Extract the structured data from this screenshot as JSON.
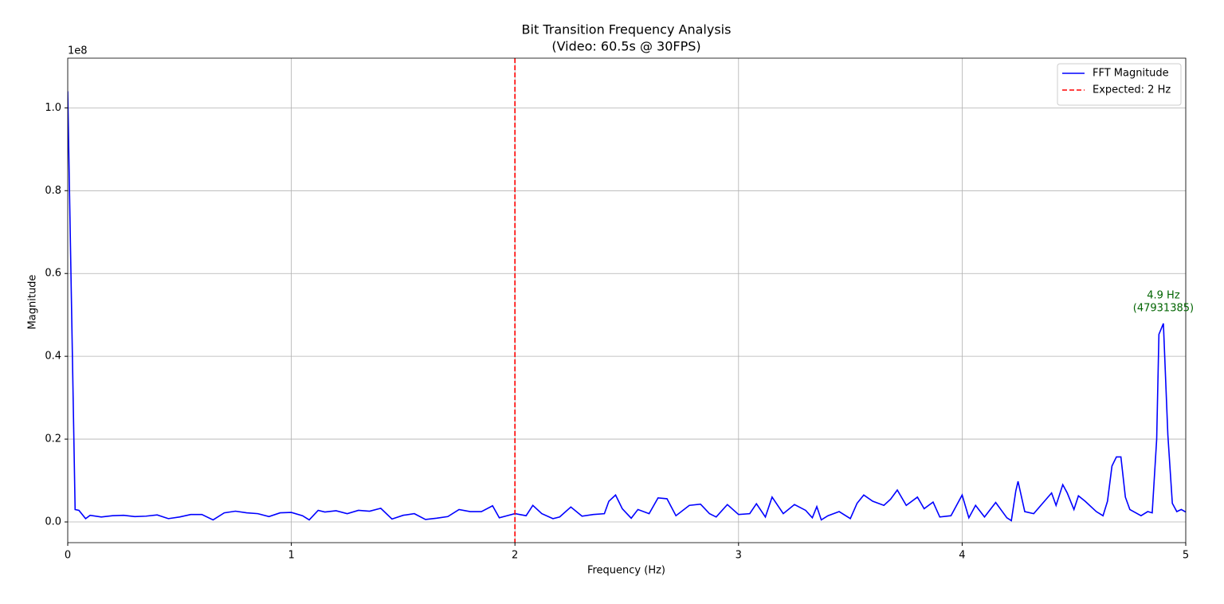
{
  "chart_data": {
    "type": "line",
    "title": "Bit Transition Frequency Analysis",
    "subtitle": "(Video: 60.5s @ 30FPS)",
    "x_label": "Frequency (Hz)",
    "y_label": "Magnitude",
    "y_offset_label": "1e8",
    "xlim": [
      0,
      5
    ],
    "ylim": [
      -5000000,
      112000000
    ],
    "xticks": [
      0,
      1,
      2,
      3,
      4,
      5
    ],
    "yticks": [
      {
        "value": 0,
        "label": "0.0"
      },
      {
        "value": 20000000,
        "label": "0.2"
      },
      {
        "value": 40000000,
        "label": "0.4"
      },
      {
        "value": 60000000,
        "label": "0.6"
      },
      {
        "value": 80000000,
        "label": "0.8"
      },
      {
        "value": 100000000,
        "label": "1.0"
      }
    ],
    "grid": true,
    "legend_position": "upper-right",
    "x": [
      0,
      0.033,
      0.05,
      0.08,
      0.1,
      0.15,
      0.2,
      0.25,
      0.3,
      0.35,
      0.4,
      0.45,
      0.5,
      0.55,
      0.6,
      0.65,
      0.7,
      0.75,
      0.8,
      0.85,
      0.9,
      0.95,
      1.0,
      1.05,
      1.08,
      1.12,
      1.15,
      1.2,
      1.25,
      1.3,
      1.35,
      1.4,
      1.45,
      1.5,
      1.55,
      1.6,
      1.65,
      1.7,
      1.75,
      1.8,
      1.85,
      1.9,
      1.93,
      2.0,
      2.05,
      2.08,
      2.12,
      2.17,
      2.2,
      2.25,
      2.3,
      2.35,
      2.4,
      2.42,
      2.45,
      2.48,
      2.52,
      2.55,
      2.6,
      2.64,
      2.68,
      2.72,
      2.78,
      2.83,
      2.87,
      2.9,
      2.95,
      3.0,
      3.05,
      3.08,
      3.12,
      3.15,
      3.2,
      3.25,
      3.3,
      3.33,
      3.35,
      3.37,
      3.4,
      3.45,
      3.5,
      3.53,
      3.56,
      3.6,
      3.65,
      3.68,
      3.71,
      3.75,
      3.8,
      3.83,
      3.87,
      3.9,
      3.95,
      4.0,
      4.03,
      4.06,
      4.1,
      4.15,
      4.2,
      4.22,
      4.24,
      4.25,
      4.28,
      4.32,
      4.36,
      4.4,
      4.42,
      4.45,
      4.47,
      4.5,
      4.52,
      4.55,
      4.6,
      4.63,
      4.65,
      4.67,
      4.69,
      4.71,
      4.73,
      4.75,
      4.8,
      4.83,
      4.85,
      4.87,
      4.88,
      4.9,
      4.92,
      4.94,
      4.96,
      4.98,
      5.0
    ],
    "series": [
      {
        "name": "FFT Magnitude",
        "color": "#0000ff",
        "values": [
          104000000,
          3000000,
          2800000,
          800000,
          1600000,
          1200000,
          1500000,
          1600000,
          1300000,
          1400000,
          1700000,
          800000,
          1200000,
          1800000,
          1800000,
          500000,
          2200000,
          2600000,
          2200000,
          2000000,
          1300000,
          2200000,
          2300000,
          1500000,
          500000,
          2800000,
          2400000,
          2700000,
          2000000,
          2800000,
          2600000,
          3300000,
          700000,
          1600000,
          2000000,
          600000,
          900000,
          1300000,
          3000000,
          2500000,
          2500000,
          3900000,
          1000000,
          2000000,
          1500000,
          4000000,
          2000000,
          800000,
          1200000,
          3600000,
          1400000,
          1800000,
          2000000,
          5000000,
          6500000,
          3200000,
          900000,
          3000000,
          2000000,
          5800000,
          5600000,
          1500000,
          4000000,
          4300000,
          2000000,
          1200000,
          4200000,
          1800000,
          2000000,
          4400000,
          1200000,
          6000000,
          2000000,
          4200000,
          2800000,
          1000000,
          3700000,
          500000,
          1500000,
          2500000,
          800000,
          4500000,
          6500000,
          5000000,
          4000000,
          5500000,
          7700000,
          4000000,
          6000000,
          3200000,
          4800000,
          1200000,
          1500000,
          6500000,
          1000000,
          4000000,
          1200000,
          4700000,
          1000000,
          300000,
          7500000,
          9800000,
          2500000,
          2000000,
          4500000,
          7000000,
          4000000,
          9000000,
          7000000,
          3000000,
          6300000,
          5000000,
          2500000,
          1500000,
          5000000,
          13500000,
          15700000,
          15700000,
          6000000,
          3000000,
          1500000,
          2500000,
          2200000,
          20000000,
          45300000,
          47931385,
          21000000,
          4500000,
          2500000,
          3000000,
          2400000
        ]
      }
    ],
    "vlines": [
      {
        "name": "Expected: 2 Hz",
        "color": "#ff0000",
        "x": 2
      }
    ],
    "annotation": {
      "lines": [
        "4.9 Hz",
        "(47931385)"
      ],
      "color": "#006400",
      "x": 4.9,
      "y": 47931385
    }
  }
}
